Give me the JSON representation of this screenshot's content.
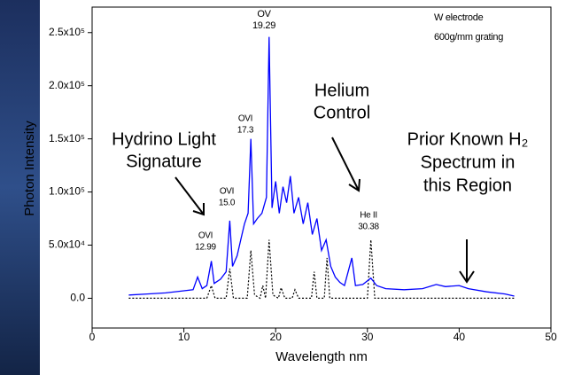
{
  "chart_data": {
    "type": "line",
    "x_label": "Wavelength nm",
    "y_label": "Photon Intensity",
    "xlim": [
      0,
      50
    ],
    "xticks": [
      0,
      10,
      20,
      30,
      40,
      50
    ],
    "ylim": [
      -28000,
      274000
    ],
    "yticks": [
      {
        "value": 0,
        "label": "0.0"
      },
      {
        "value": 50000,
        "label": "5.0x10⁴"
      },
      {
        "value": 100000,
        "label": "1.0x10⁵"
      },
      {
        "value": 150000,
        "label": "1.5x10⁵"
      },
      {
        "value": 200000,
        "label": "2.0x10⁵"
      },
      {
        "value": 250000,
        "label": "2.5x10⁵"
      }
    ],
    "series": [
      {
        "color": "#0000ff",
        "style": "solid",
        "x": [
          4,
          6,
          8,
          10,
          11,
          11.5,
          12,
          12.5,
          12.99,
          13.3,
          14,
          14.6,
          15.0,
          15.3,
          15.8,
          16.2,
          16.6,
          17.0,
          17.3,
          17.6,
          18,
          18.5,
          19.0,
          19.29,
          19.6,
          20.0,
          20.4,
          20.8,
          21.2,
          21.6,
          22,
          22.5,
          23,
          23.5,
          24,
          24.5,
          25,
          25.5,
          26,
          26.5,
          27,
          27.5,
          28.3,
          28.7,
          29.5,
          30.38,
          31,
          32,
          34,
          36,
          37.5,
          38.5,
          40,
          41,
          43,
          45,
          46
        ],
        "values": [
          3000,
          4000,
          5000,
          7000,
          8000,
          20000,
          9000,
          12000,
          35000,
          14000,
          18000,
          25000,
          73000,
          30000,
          40000,
          55000,
          70000,
          80000,
          150000,
          70000,
          75000,
          80000,
          95000,
          246000,
          85000,
          110000,
          80000,
          105000,
          90000,
          115000,
          80000,
          95000,
          70000,
          90000,
          60000,
          75000,
          45000,
          55000,
          30000,
          20000,
          15000,
          12000,
          38000,
          12000,
          13000,
          19000,
          12000,
          9000,
          8000,
          9000,
          13000,
          11000,
          12000,
          9000,
          6000,
          4000,
          2000
        ]
      },
      {
        "color": "#000000",
        "style": "dotted",
        "x": [
          4,
          10,
          12.5,
          12.99,
          13.4,
          14.6,
          15.0,
          15.4,
          16.9,
          17.3,
          17.7,
          18.3,
          18.6,
          18.9,
          19.29,
          19.7,
          20.3,
          20.6,
          21,
          21.8,
          22.1,
          22.5,
          23.9,
          24.2,
          24.5,
          25.3,
          25.6,
          25.9,
          30,
          30.38,
          30.8,
          46
        ],
        "values": [
          0,
          0,
          0,
          12000,
          0,
          0,
          28000,
          0,
          0,
          45000,
          3000,
          0,
          12000,
          0,
          55000,
          3000,
          0,
          10000,
          0,
          0,
          8000,
          0,
          0,
          25000,
          0,
          0,
          38000,
          0,
          0,
          55000,
          0,
          0
        ]
      }
    ],
    "annotations": [
      [
        "W electrode",
        "600g/mm grating"
      ],
      [
        "Hydrino Light",
        "Signature"
      ],
      [
        "Helium",
        "Control"
      ],
      [
        "Prior Known H₂",
        "Spectrum  in",
        "this Region"
      ],
      [
        "OVI",
        "12.99"
      ],
      [
        "OVI",
        "15.0"
      ],
      [
        "OVI",
        "17.3"
      ],
      [
        "OV",
        "19.29"
      ],
      [
        "He II",
        "30.38"
      ]
    ]
  }
}
